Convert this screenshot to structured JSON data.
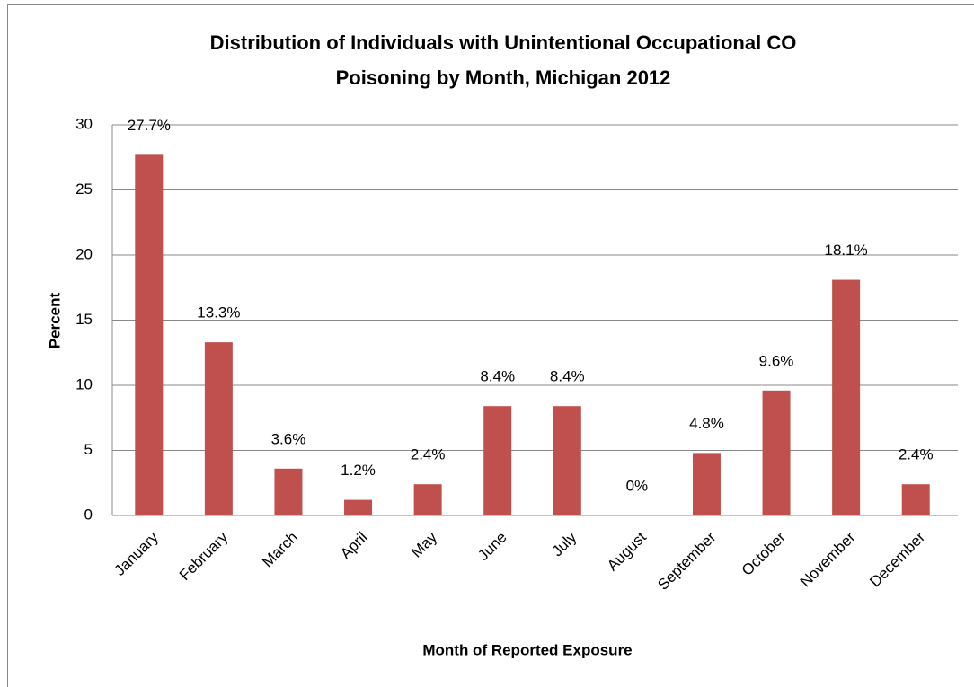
{
  "chart_data": {
    "type": "bar",
    "title": [
      "Distribution of Individuals with Unintentional Occupational CO",
      "Poisoning by Month, Michigan 2012"
    ],
    "x_label": "Month of Reported Exposure",
    "y_label": "Percent",
    "categories": [
      "January",
      "February",
      "March",
      "April",
      "May",
      "June",
      "July",
      "August",
      "September",
      "October",
      "November",
      "December"
    ],
    "values": [
      27.7,
      13.3,
      3.6,
      1.2,
      2.4,
      8.4,
      8.4,
      0,
      4.8,
      9.6,
      18.1,
      2.4
    ],
    "value_labels": [
      "27.7%",
      "13.3%",
      "3.6%",
      "1.2%",
      "2.4%",
      "8.4%",
      "8.4%",
      "0%",
      "4.8%",
      "9.6%",
      "18.1%",
      "2.4%"
    ],
    "color": "#c0504d",
    "ylim": [
      0,
      30
    ],
    "yticks": [
      0,
      5,
      10,
      15,
      20,
      25,
      30
    ],
    "grid": true
  }
}
